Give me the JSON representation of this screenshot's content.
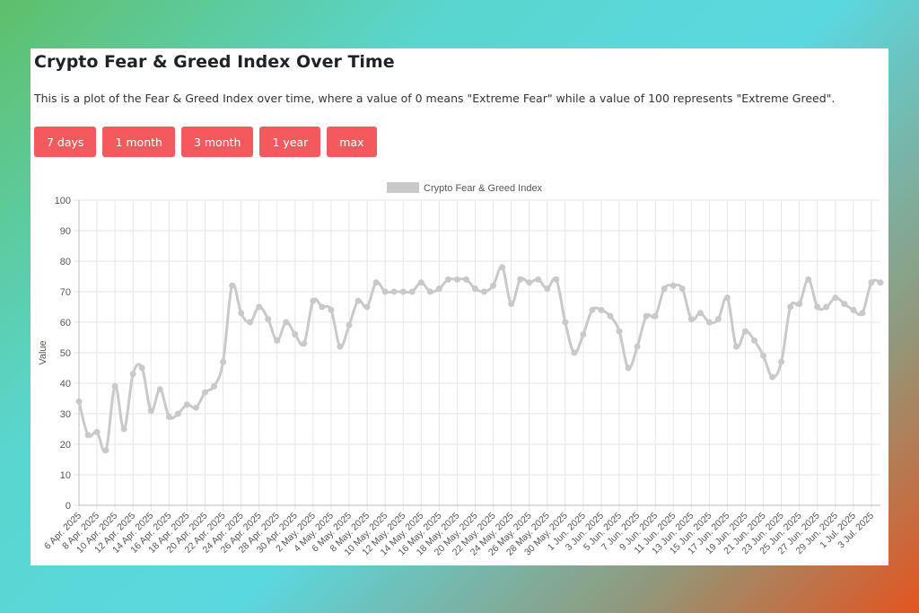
{
  "page": {
    "title": "Crypto Fear & Greed Index Over Time",
    "description": "This is a plot of the Fear & Greed Index over time, where a value of 0 means \"Extreme Fear\" while a value of 100 represents \"Extreme Greed\"."
  },
  "buttons": [
    {
      "label": "7 days"
    },
    {
      "label": "1 month"
    },
    {
      "label": "3 month"
    },
    {
      "label": "1 year"
    },
    {
      "label": "max"
    }
  ],
  "colors": {
    "button": "#f25a5e",
    "series_line": "#c9c9c9",
    "grid": "#e6e6e6"
  },
  "chart_data": {
    "type": "line",
    "title": "",
    "xlabel": "",
    "ylabel": "Value",
    "ylim": [
      0,
      100
    ],
    "yticks": [
      0,
      10,
      20,
      30,
      40,
      50,
      60,
      70,
      80,
      90,
      100
    ],
    "grid": true,
    "legend_position": "top-center",
    "x_tick_labels": [
      "6 Apr. 2025",
      "8 Apr. 2025",
      "10 Apr. 2025",
      "12 Apr. 2025",
      "14 Apr. 2025",
      "16 Apr. 2025",
      "18 Apr. 2025",
      "20 Apr. 2025",
      "22 Apr. 2025",
      "24 Apr. 2025",
      "26 Apr. 2025",
      "28 Apr. 2025",
      "30 Apr. 2025",
      "2 May. 2025",
      "4 May. 2025",
      "6 May. 2025",
      "8 May. 2025",
      "10 May. 2025",
      "12 May. 2025",
      "14 May. 2025",
      "16 May. 2025",
      "18 May. 2025",
      "20 May. 2025",
      "22 May. 2025",
      "24 May. 2025",
      "26 May. 2025",
      "28 May. 2025",
      "30 May. 2025",
      "1 Jun. 2025",
      "3 Jun. 2025",
      "5 Jun. 2025",
      "7 Jun. 2025",
      "9 Jun. 2025",
      "11 Jun. 2025",
      "13 Jun. 2025",
      "15 Jun. 2025",
      "17 Jun. 2025",
      "19 Jun. 2025",
      "21 Jun. 2025",
      "23 Jun. 2025",
      "25 Jun. 2025",
      "27 Jun. 2025",
      "29 Jun. 2025",
      "1 Jul. 2025",
      "3 Jul. 2025"
    ],
    "series": [
      {
        "name": "Crypto Fear & Greed Index",
        "values": [
          34,
          23,
          24,
          18,
          39,
          25,
          43,
          45,
          31,
          38,
          29,
          30,
          33,
          32,
          37,
          39,
          47,
          72,
          63,
          60,
          65,
          61,
          54,
          60,
          56,
          53,
          67,
          65,
          64,
          52,
          59,
          67,
          65,
          73,
          70,
          70,
          70,
          70,
          73,
          70,
          71,
          74,
          74,
          74,
          71,
          70,
          72,
          78,
          66,
          74,
          73,
          74,
          71,
          74,
          60,
          50,
          56,
          64,
          64,
          62,
          57,
          45,
          52,
          62,
          62,
          71,
          72,
          71,
          61,
          63,
          60,
          61,
          68,
          52,
          57,
          54,
          49,
          42,
          47,
          65,
          66,
          74,
          65,
          65,
          68,
          66,
          64,
          63,
          73,
          73
        ]
      }
    ]
  }
}
